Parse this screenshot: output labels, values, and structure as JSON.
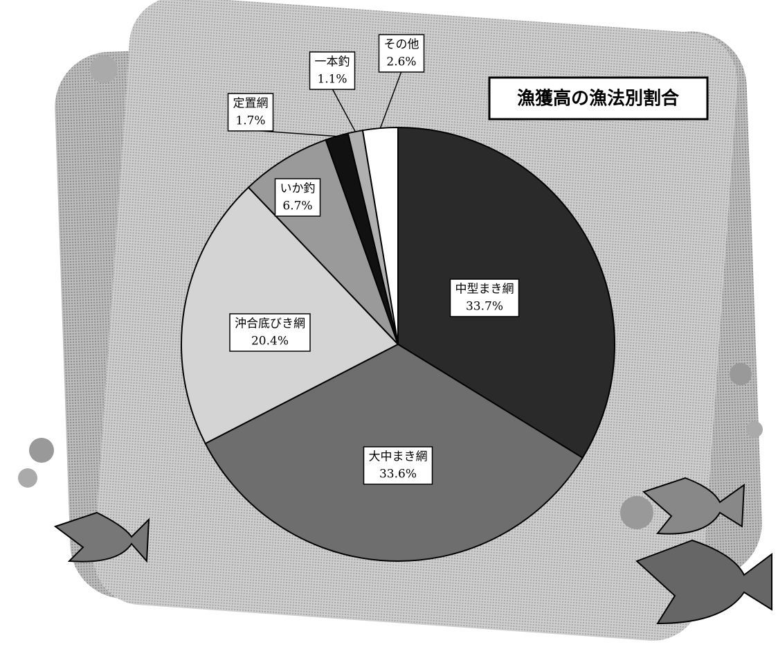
{
  "chart_data": {
    "type": "pie",
    "title": "漁獲高の漁法別割合",
    "categories": [
      "中型まき網",
      "大中まき網",
      "沖合底びき網",
      "いか釣",
      "定置網",
      "一本釣",
      "その他"
    ],
    "values": [
      33.7,
      33.6,
      20.4,
      6.7,
      1.7,
      1.1,
      2.6
    ],
    "value_labels": [
      "33.7%",
      "33.6%",
      "20.4%",
      "6.7%",
      "1.7%",
      "1.1%",
      "2.6%"
    ],
    "colors": [
      "#2a2a2a",
      "#6e6e6e",
      "#d4d4d4",
      "#9a9a9a",
      "#111111",
      "#b0b0b0",
      "#ffffff"
    ]
  }
}
